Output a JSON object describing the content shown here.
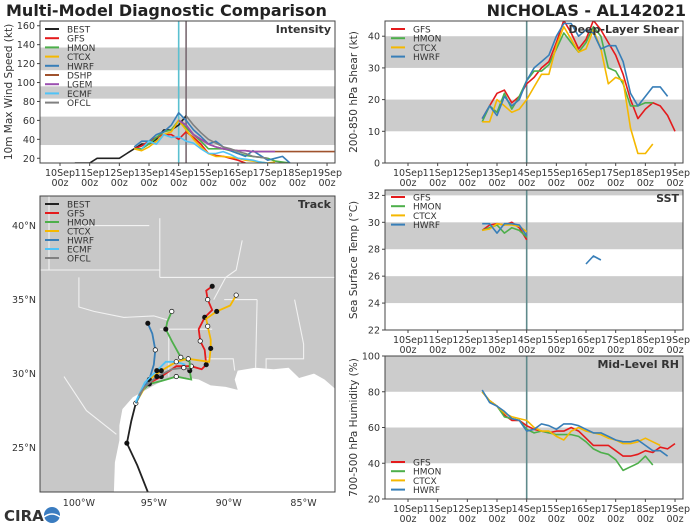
{
  "header": {
    "title": "Multi-Model Diagnostic Comparison",
    "storm": "NICHOLAS - AL142021"
  },
  "logo": {
    "text": "CIRA"
  },
  "colors": {
    "BEST": "#222222",
    "GFS": "#e41a1c",
    "HMON": "#4daf4a",
    "CTCX": "#f5b800",
    "HWRF": "#377eb8",
    "DSHP": "#a0522d",
    "LGEM": "#9b4fb0",
    "ECMF": "#4fc3f7",
    "OFCL": "#808080",
    "band": "#cccccc",
    "now_line": "#5f8a8b"
  },
  "x_ticks": [
    {
      "top": "10Sep",
      "bottom": "00z"
    },
    {
      "top": "11Sep",
      "bottom": "00z"
    },
    {
      "top": "12Sep",
      "bottom": "00z"
    },
    {
      "top": "13Sep",
      "bottom": "00z"
    },
    {
      "top": "14Sep",
      "bottom": "00z"
    },
    {
      "top": "15Sep",
      "bottom": "00z"
    },
    {
      "top": "16Sep",
      "bottom": "00z"
    },
    {
      "top": "17Sep",
      "bottom": "00z"
    },
    {
      "top": "18Sep",
      "bottom": "00z"
    },
    {
      "top": "19Sep",
      "bottom": "00z"
    }
  ],
  "chart_data": [
    {
      "id": "intensity",
      "type": "line",
      "title": "Intensity",
      "ylabel": "10m Max Wind Speed (kt)",
      "ylim": [
        15,
        165
      ],
      "yticks": [
        20,
        40,
        60,
        80,
        100,
        120,
        140,
        160
      ],
      "bands": [
        [
          34,
          64
        ],
        [
          83,
          96
        ],
        [
          113,
          137
        ]
      ],
      "vlines": [
        {
          "time": "14Sep 00z",
          "color": "#5bc0d0"
        },
        {
          "time": "14Sep 06z",
          "color": "#7a6a72"
        }
      ],
      "legend": "top-left",
      "step_hours": 6,
      "series": [
        {
          "name": "BEST",
          "start": "10Sep 12z",
          "values": [
            15,
            15,
            15,
            20,
            20,
            20,
            20,
            25,
            30,
            35,
            35,
            40,
            50,
            50,
            55,
            65
          ]
        },
        {
          "name": "GFS",
          "start": "12Sep 12z",
          "values": [
            30,
            33,
            38,
            42,
            45,
            45,
            40,
            48,
            42,
            35,
            25,
            23,
            22,
            20,
            18,
            15
          ]
        },
        {
          "name": "HMON",
          "start": "12Sep 12z",
          "values": [
            30,
            30,
            35,
            42,
            48,
            50,
            60,
            52,
            45,
            38,
            30,
            30,
            30,
            28,
            25,
            23,
            22,
            21,
            20,
            17,
            16,
            15
          ]
        },
        {
          "name": "CTCX",
          "start": "12Sep 12z",
          "values": [
            30,
            28,
            32,
            38,
            45,
            48,
            60,
            50,
            40,
            32,
            25,
            22,
            22,
            21,
            20,
            18,
            17,
            16,
            15,
            16
          ]
        },
        {
          "name": "HWRF",
          "start": "12Sep 12z",
          "values": [
            32,
            38,
            38,
            45,
            48,
            55,
            68,
            60,
            50,
            43,
            35,
            38,
            32,
            28,
            25,
            22,
            28,
            23,
            18,
            20,
            22,
            15
          ]
        },
        {
          "name": "DSHP",
          "start": "14Sep 00z",
          "values": [
            60,
            55,
            45,
            40,
            35,
            32,
            30,
            29,
            28,
            28,
            27,
            27,
            27,
            27,
            27,
            27,
            27,
            27,
            27,
            27,
            27,
            27
          ]
        },
        {
          "name": "LGEM",
          "start": "14Sep 00z",
          "values": [
            60,
            55,
            45,
            40,
            35,
            32,
            30,
            29,
            28,
            28,
            27,
            27,
            27,
            27
          ]
        },
        {
          "name": "ECMF",
          "start": "12Sep 18z",
          "values": [
            30,
            38,
            35,
            45,
            42,
            43,
            38,
            36,
            30,
            25,
            25,
            27,
            24,
            20,
            19,
            18,
            16,
            15
          ]
        },
        {
          "name": "OFCL",
          "start": "14Sep 06z",
          "values": [
            65,
            55,
            47,
            40,
            36,
            32,
            30,
            27,
            25,
            22,
            21,
            20
          ]
        }
      ]
    },
    {
      "id": "shear",
      "type": "line",
      "title": "Deep-Layer Shear",
      "ylabel": "200-850 hPa Shear (kt)",
      "ylim": [
        0,
        44.8
      ],
      "yticks": [
        0,
        10,
        20,
        30,
        40
      ],
      "bands": [
        [
          10,
          20
        ],
        [
          30,
          40
        ]
      ],
      "vlines": [
        {
          "time": "14Sep 00z",
          "color": "#5f8a8b"
        }
      ],
      "legend": "top-left",
      "step_hours": 6,
      "series": [
        {
          "name": "GFS",
          "start": "12Sep 12z",
          "values": [
            14,
            18,
            22,
            23,
            19,
            21,
            25,
            27,
            30,
            32,
            38,
            45,
            41,
            36,
            39,
            45,
            42,
            38,
            34,
            28,
            20,
            14,
            17,
            19,
            18,
            15,
            10
          ]
        },
        {
          "name": "HMON",
          "start": "12Sep 12z",
          "values": [
            13,
            18,
            16,
            22,
            17,
            21,
            26,
            29,
            29,
            31,
            36,
            41,
            38,
            35,
            38,
            43,
            40,
            30,
            29,
            25,
            18,
            18,
            19,
            19
          ]
        },
        {
          "name": "CTCX",
          "start": "12Sep 12z",
          "values": [
            13,
            13,
            20,
            18,
            16,
            17,
            20,
            24,
            28,
            28,
            37,
            43,
            39,
            35,
            36,
            42,
            36,
            25,
            27,
            26,
            11,
            3,
            3,
            6
          ]
        },
        {
          "name": "HWRF",
          "start": "12Sep 12z",
          "values": [
            14,
            18,
            15,
            21,
            18,
            20,
            26,
            30,
            32,
            34,
            40,
            44,
            44,
            40,
            42,
            41,
            36,
            37,
            37,
            32,
            22,
            18,
            21,
            24,
            24,
            21
          ]
        }
      ]
    },
    {
      "id": "sst",
      "type": "line",
      "title": "SST",
      "ylabel": "Sea Surface Temp (°C)",
      "ylim": [
        22,
        32.4
      ],
      "yticks": [
        22,
        24,
        26,
        28,
        30,
        32
      ],
      "bands": [
        [
          24,
          26
        ],
        [
          28,
          30
        ],
        [
          32,
          34
        ]
      ],
      "vlines": [
        {
          "time": "14Sep 00z",
          "color": "#5f8a8b"
        }
      ],
      "legend": "top-left",
      "step_hours": 6,
      "series": [
        {
          "name": "GFS",
          "start": "12Sep 12z",
          "values": [
            29.4,
            29.8,
            29.9,
            29.8,
            30.0,
            29.6,
            28.7
          ]
        },
        {
          "name": "HMON",
          "start": "12Sep 12z",
          "values": [
            29.4,
            29.6,
            29.8,
            29.2,
            29.6,
            29.4,
            28.9
          ]
        },
        {
          "name": "CTCX",
          "start": "12Sep 12z",
          "values": [
            29.4,
            29.5,
            29.9,
            29.8,
            29.8,
            29.7,
            29.3
          ]
        },
        {
          "name": "HWRF",
          "start": "12Sep 12z",
          "values": [
            29.9,
            29.9,
            29.2,
            29.9,
            29.9,
            29.8,
            29.0,
            null,
            null,
            null,
            null,
            null,
            null,
            null,
            26.9,
            27.5,
            27.2
          ]
        }
      ]
    },
    {
      "id": "rh",
      "type": "line",
      "title": "Mid-Level RH",
      "ylabel": "700-500 hPa Humidity (%)",
      "ylim": [
        20,
        100
      ],
      "yticks": [
        20,
        40,
        60,
        80,
        100
      ],
      "bands": [
        [
          40,
          60
        ],
        [
          80,
          100
        ]
      ],
      "vlines": [
        {
          "time": "14Sep 00z",
          "color": "#5f8a8b"
        }
      ],
      "legend": "bottom-left",
      "step_hours": 6,
      "series": [
        {
          "name": "GFS",
          "start": "12Sep 12z",
          "values": [
            80,
            75,
            72,
            67,
            64,
            64,
            61,
            59,
            58,
            57,
            58,
            58,
            60,
            58,
            54,
            50,
            50,
            50,
            47,
            44,
            44,
            45,
            47,
            46,
            49,
            48,
            51
          ]
        },
        {
          "name": "HMON",
          "start": "12Sep 12z",
          "values": [
            80,
            75,
            72,
            66,
            65,
            64,
            59,
            57,
            58,
            57,
            56,
            56,
            56,
            55,
            52,
            48,
            46,
            45,
            42,
            36,
            38,
            40,
            44,
            39
          ]
        },
        {
          "name": "CTCX",
          "start": "12Sep 12z",
          "values": [
            80,
            75,
            72,
            68,
            66,
            65,
            64,
            60,
            58,
            58,
            55,
            53,
            58,
            60,
            58,
            57,
            56,
            54,
            53,
            51,
            51,
            52,
            54,
            52,
            50
          ]
        },
        {
          "name": "HWRF",
          "start": "12Sep 12z",
          "values": [
            81,
            74,
            72,
            69,
            65,
            64,
            58,
            59,
            62,
            61,
            59,
            62,
            62,
            61,
            59,
            57,
            57,
            55,
            53,
            52,
            52,
            53,
            50,
            47,
            47,
            44
          ]
        }
      ]
    },
    {
      "id": "track",
      "type": "map",
      "title": "Track",
      "lon_range": [
        -102.6,
        -82.9
      ],
      "lat_range": [
        22.0,
        42.0
      ],
      "lat_ticks": [
        {
          "value": 40,
          "label": "40°N"
        },
        {
          "value": 35,
          "label": "35°N"
        },
        {
          "value": 30,
          "label": "30°N"
        },
        {
          "value": 25,
          "label": "25°N"
        }
      ],
      "lon_ticks": [
        {
          "value": -100,
          "label": "100°W"
        },
        {
          "value": -95,
          "label": "95°W"
        },
        {
          "value": -90,
          "label": "90°W"
        },
        {
          "value": -85,
          "label": "85°W"
        }
      ],
      "legend": "top-left",
      "series": [
        {
          "name": "BEST",
          "points": [
            [
              -95.4,
              22.0
            ],
            [
              -96.1,
              23.8
            ],
            [
              -96.8,
              25.3
            ],
            [
              -96.5,
              26.8
            ],
            [
              -96.2,
              28.0
            ]
          ]
        },
        {
          "name": "GFS",
          "points": [
            [
              -96.2,
              28.0
            ],
            [
              -95.6,
              29.2
            ],
            [
              -94.5,
              29.8
            ],
            [
              -93.5,
              30.5
            ],
            [
              -92.5,
              30.5
            ],
            [
              -91.8,
              30.3
            ],
            [
              -91.5,
              30.6
            ],
            [
              -91.6,
              31.6
            ],
            [
              -91.9,
              32.2
            ],
            [
              -92.0,
              33.0
            ],
            [
              -91.6,
              33.8
            ],
            [
              -91.1,
              34.3
            ],
            [
              -91.4,
              35.0
            ],
            [
              -91.5,
              35.6
            ],
            [
              -91.1,
              35.9
            ]
          ]
        },
        {
          "name": "HMON",
          "points": [
            [
              -96.2,
              28.0
            ],
            [
              -95.8,
              28.8
            ],
            [
              -95.3,
              29.3
            ],
            [
              -94.5,
              29.5
            ],
            [
              -93.5,
              29.8
            ],
            [
              -92.5,
              29.6
            ],
            [
              -92.6,
              30.2
            ],
            [
              -92.6,
              30.8
            ],
            [
              -93.2,
              31.1
            ],
            [
              -93.8,
              32.2
            ],
            [
              -94.2,
              33.0
            ],
            [
              -94.1,
              33.5
            ],
            [
              -93.8,
              34.2
            ]
          ]
        },
        {
          "name": "CTCX",
          "points": [
            [
              -96.2,
              28.0
            ],
            [
              -95.3,
              29.6
            ],
            [
              -94.5,
              30.2
            ],
            [
              -93.5,
              30.8
            ],
            [
              -92.7,
              31.0
            ],
            [
              -91.3,
              30.8
            ],
            [
              -91.2,
              31.7
            ],
            [
              -91.2,
              32.3
            ],
            [
              -91.4,
              33.2
            ],
            [
              -91.5,
              33.7
            ],
            [
              -90.8,
              34.2
            ],
            [
              -89.9,
              34.6
            ],
            [
              -89.5,
              35.3
            ]
          ]
        },
        {
          "name": "HWRF",
          "points": [
            [
              -96.2,
              28.0
            ],
            [
              -95.7,
              29.0
            ],
            [
              -95.3,
              29.6
            ],
            [
              -95.0,
              30.6
            ],
            [
              -94.9,
              31.6
            ],
            [
              -95.1,
              32.7
            ],
            [
              -95.4,
              33.4
            ]
          ]
        },
        {
          "name": "ECMF",
          "points": [
            [
              -96.2,
              28.1
            ],
            [
              -95.6,
              29.4
            ],
            [
              -94.8,
              30.2
            ],
            [
              -94.2,
              30.8
            ],
            [
              -93.5,
              30.8
            ],
            [
              -92.9,
              30.6
            ]
          ]
        },
        {
          "name": "OFCL",
          "points": [
            [
              -96.0,
              28.5
            ],
            [
              -95.6,
              29.1
            ],
            [
              -94.8,
              29.8
            ],
            [
              -93.8,
              30.3
            ],
            [
              -93.0,
              30.4
            ],
            [
              -92.6,
              30.3
            ]
          ]
        }
      ]
    }
  ]
}
